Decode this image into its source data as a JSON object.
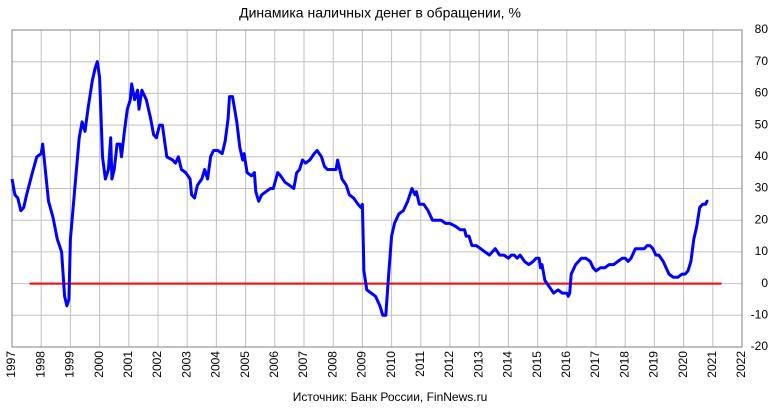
{
  "chart_data": {
    "type": "line",
    "title": "Динамика наличных денег в обращении, %",
    "source": "Источник: Банк России, FinNews.ru",
    "xlim": [
      1997,
      2022
    ],
    "xticks": [
      1997,
      1998,
      1999,
      2000,
      2001,
      2002,
      2003,
      2004,
      2005,
      2006,
      2007,
      2008,
      2009,
      2010,
      2011,
      2012,
      2013,
      2014,
      2015,
      2016,
      2017,
      2018,
      2019,
      2020,
      2021,
      2022
    ],
    "ylim": [
      -20,
      80
    ],
    "yticks": [
      -20,
      -10,
      0,
      10,
      20,
      30,
      40,
      50,
      60,
      70,
      80
    ],
    "grid": true,
    "y_axis_side": "right",
    "x": [
      1997.0,
      1997.1,
      1997.2,
      1997.3,
      1997.4,
      1997.5,
      1997.7,
      1997.85,
      1998.0,
      1998.05,
      1998.15,
      1998.25,
      1998.4,
      1998.55,
      1998.7,
      1998.8,
      1998.88,
      1998.95,
      1999.0,
      1999.15,
      1999.3,
      1999.4,
      1999.5,
      1999.6,
      1999.75,
      1999.85,
      1999.92,
      2000.0,
      2000.1,
      2000.2,
      2000.3,
      2000.38,
      2000.42,
      2000.5,
      2000.6,
      2000.7,
      2000.75,
      2000.85,
      2000.95,
      2001.05,
      2001.1,
      2001.2,
      2001.3,
      2001.35,
      2001.45,
      2001.6,
      2001.75,
      2001.85,
      2001.95,
      2002.05,
      2002.15,
      2002.3,
      2002.5,
      2002.6,
      2002.7,
      2002.8,
      2002.95,
      2003.1,
      2003.15,
      2003.25,
      2003.35,
      2003.5,
      2003.6,
      2003.7,
      2003.8,
      2003.9,
      2004.05,
      2004.2,
      2004.3,
      2004.4,
      2004.45,
      2004.55,
      2004.7,
      2004.8,
      2004.9,
      2004.95,
      2005.05,
      2005.2,
      2005.3,
      2005.35,
      2005.45,
      2005.55,
      2005.7,
      2005.85,
      2005.95,
      2006.1,
      2006.2,
      2006.35,
      2006.5,
      2006.65,
      2006.75,
      2006.85,
      2006.95,
      2007.05,
      2007.2,
      2007.35,
      2007.45,
      2007.6,
      2007.7,
      2007.8,
      2007.95,
      2008.1,
      2008.15,
      2008.3,
      2008.45,
      2008.55,
      2008.7,
      2008.85,
      2008.95,
      2009.0,
      2009.05,
      2009.15,
      2009.3,
      2009.45,
      2009.6,
      2009.7,
      2009.8,
      2009.9,
      2010.0,
      2010.1,
      2010.25,
      2010.4,
      2010.55,
      2010.7,
      2010.8,
      2010.85,
      2010.95,
      2011.1,
      2011.25,
      2011.4,
      2011.55,
      2011.7,
      2011.85,
      2012.0,
      2012.2,
      2012.35,
      2012.5,
      2012.55,
      2012.65,
      2012.75,
      2012.9,
      2013.05,
      2013.2,
      2013.35,
      2013.45,
      2013.55,
      2013.7,
      2013.85,
      2014.0,
      2014.1,
      2014.2,
      2014.3,
      2014.4,
      2014.55,
      2014.7,
      2014.85,
      2014.95,
      2015.05,
      2015.1,
      2015.15,
      2015.25,
      2015.4,
      2015.55,
      2015.7,
      2015.85,
      2016.0,
      2016.05,
      2016.1,
      2016.15,
      2016.3,
      2016.5,
      2016.65,
      2016.8,
      2016.9,
      2017.0,
      2017.15,
      2017.3,
      2017.45,
      2017.6,
      2017.75,
      2017.9,
      2018.0,
      2018.1,
      2018.2,
      2018.35,
      2018.5,
      2018.65,
      2018.75,
      2018.85,
      2018.95,
      2019.05,
      2019.15,
      2019.3,
      2019.4,
      2019.5,
      2019.65,
      2019.8,
      2019.95,
      2020.05,
      2020.15,
      2020.25,
      2020.35,
      2020.45,
      2020.55,
      2020.65,
      2020.75,
      2020.8,
      2020.85
    ],
    "series": [
      {
        "color": "#0000ff",
        "values": [
          33,
          28,
          27,
          23,
          24,
          28,
          35,
          40,
          41,
          44,
          35,
          26,
          21,
          14,
          10,
          -4,
          -7,
          -5,
          14,
          30,
          46,
          51,
          48,
          55,
          64,
          68,
          70,
          65,
          40,
          33,
          36,
          46,
          33,
          36,
          44,
          44,
          40,
          48,
          55,
          58,
          63,
          58,
          61,
          55,
          61,
          58,
          52,
          47,
          46,
          50,
          50,
          40,
          39,
          38,
          40,
          36,
          35,
          33,
          28,
          27,
          31,
          33,
          36,
          33,
          40,
          42,
          42,
          41,
          45,
          52,
          59,
          59,
          51,
          43,
          39,
          41,
          35,
          34,
          35,
          29,
          26,
          28,
          29,
          30,
          30,
          35,
          34,
          32,
          31,
          30,
          35,
          36,
          39,
          38,
          39,
          41,
          42,
          40,
          37,
          36,
          36,
          36,
          39,
          33,
          31,
          28,
          27,
          25,
          24,
          25,
          4,
          -2,
          -3,
          -4,
          -7,
          -10,
          -10,
          3,
          15,
          19,
          22,
          23,
          26,
          30,
          28,
          29,
          25,
          25,
          23,
          20,
          20,
          20,
          19,
          19,
          18,
          17,
          17,
          15,
          15,
          12,
          12,
          11,
          10,
          9,
          10,
          11,
          9,
          9,
          8,
          9,
          9,
          8,
          9,
          7,
          6,
          7,
          8,
          8,
          5,
          6,
          1,
          -1,
          -3,
          -2,
          -3,
          -3,
          -4,
          -3,
          3,
          6,
          8,
          8,
          7,
          5,
          4,
          5,
          5,
          6,
          6,
          7,
          8,
          8,
          7,
          8,
          11,
          11,
          11,
          12,
          12,
          11,
          9,
          9,
          7,
          5,
          3,
          2,
          2,
          3,
          3,
          4,
          7,
          14,
          18,
          24,
          25,
          25,
          26,
          26
        ]
      }
    ],
    "hlines": [
      {
        "value": 0,
        "color": "#ff0000",
        "xrange": [
          1997.6,
          2021.3
        ]
      }
    ]
  }
}
